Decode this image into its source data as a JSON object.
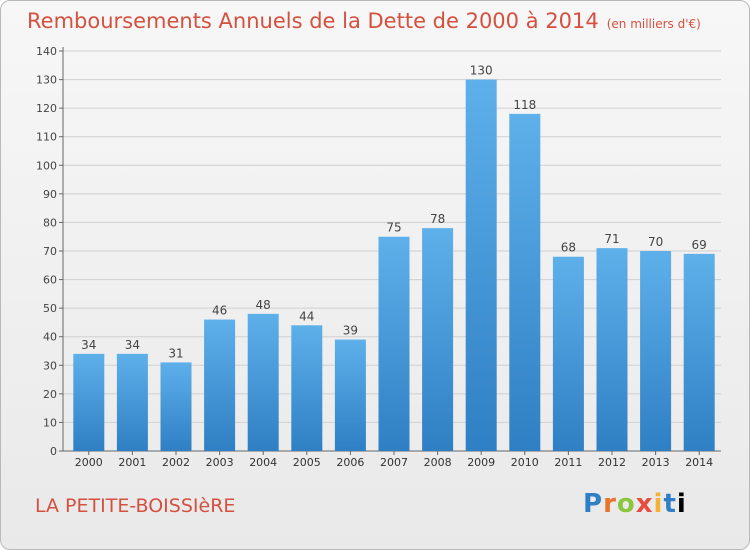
{
  "header": {
    "title": "Remboursements Annuels de la Dette de 2000 à 2014",
    "unit": "(en milliers d'€)"
  },
  "footer": {
    "city": "LA PETITE-BOISSIèRE",
    "logo_letters": [
      "P",
      "r",
      "o",
      "x",
      "i",
      "t",
      "i"
    ]
  },
  "colors": {
    "bar_top": "#5eb0ea",
    "bar_bottom": "#2f7fc4",
    "title": "#d4503f",
    "grid": "#d0d0d0"
  },
  "chart_data": {
    "type": "bar",
    "title": "Remboursements Annuels de la Dette de 2000 à 2014",
    "subtitle": "(en milliers d'€)",
    "xlabel": "",
    "ylabel": "",
    "categories": [
      "2000",
      "2001",
      "2002",
      "2003",
      "2004",
      "2005",
      "2006",
      "2007",
      "2008",
      "2009",
      "2010",
      "2011",
      "2012",
      "2013",
      "2014"
    ],
    "values": [
      34,
      34,
      31,
      46,
      48,
      44,
      39,
      75,
      78,
      130,
      118,
      68,
      71,
      70,
      69
    ],
    "ylim": [
      0,
      140
    ],
    "yticks": [
      0,
      10,
      20,
      30,
      40,
      50,
      60,
      70,
      80,
      90,
      100,
      110,
      120,
      130,
      140
    ],
    "grid": true,
    "data_labels": true
  }
}
